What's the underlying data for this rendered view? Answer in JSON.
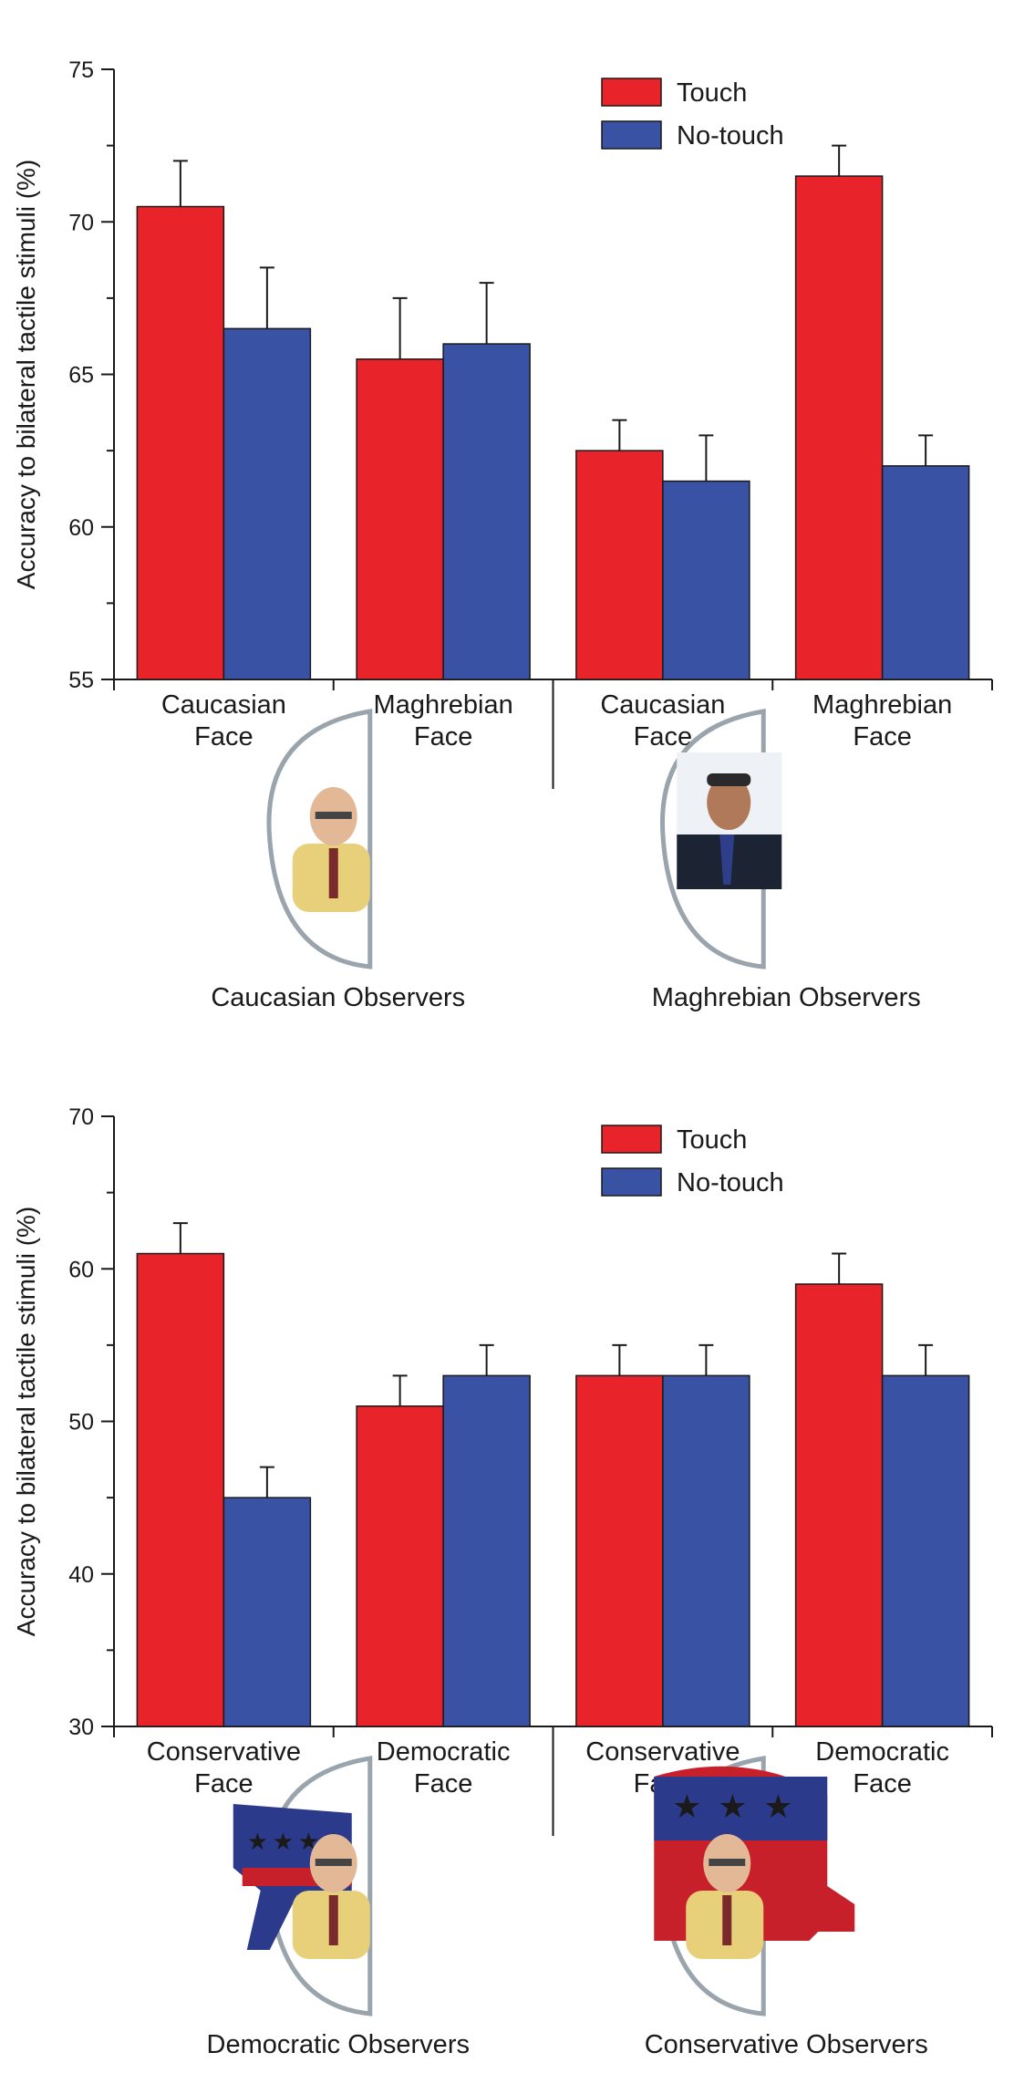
{
  "colors": {
    "touch": "#e8232a",
    "no_touch": "#3a52a4",
    "axis": "#1a1a1a"
  },
  "chart_data": [
    {
      "type": "bar",
      "ylabel": "Accuracy to bilateral tactile stimuli (%)",
      "ylim": [
        55,
        75
      ],
      "yticks": [
        55,
        60,
        65,
        70,
        75
      ],
      "legend": {
        "position": "top-right",
        "entries": [
          "Touch",
          "No-touch"
        ]
      },
      "categories": [
        [
          "Caucasian",
          "Face"
        ],
        [
          "Maghrebian",
          "Face"
        ],
        [
          "Caucasian",
          "Face"
        ],
        [
          "Maghrebian",
          "Face"
        ]
      ],
      "groups": [
        "Caucasian Observers",
        "Maghrebian Observers"
      ],
      "series": [
        {
          "name": "Touch",
          "values": [
            70.5,
            65.5,
            62.5,
            71.5
          ],
          "errors": [
            1.5,
            2.0,
            1.0,
            1.0
          ]
        },
        {
          "name": "No-touch",
          "values": [
            66.5,
            66.0,
            61.5,
            62.0
          ],
          "errors": [
            2.0,
            2.0,
            1.5,
            1.0
          ]
        }
      ],
      "icons": [
        "caucasian-man-photo-icon",
        "maghrebian-man-photo-icon"
      ]
    },
    {
      "type": "bar",
      "ylabel": "Accuracy to bilateral tactile stimuli (%)",
      "ylim": [
        30,
        70
      ],
      "yticks": [
        30,
        40,
        50,
        60,
        70
      ],
      "legend": {
        "position": "top-right",
        "entries": [
          "Touch",
          "No-touch"
        ]
      },
      "categories": [
        [
          "Conservative",
          "Face"
        ],
        [
          "Democratic",
          "Face"
        ],
        [
          "Conservative",
          "Face"
        ],
        [
          "Democratic",
          "Face"
        ]
      ],
      "groups": [
        "Democratic Observers",
        "Conservative Observers"
      ],
      "series": [
        {
          "name": "Touch",
          "values": [
            61,
            51,
            53,
            59
          ],
          "errors": [
            2,
            2,
            2,
            2
          ]
        },
        {
          "name": "No-touch",
          "values": [
            45,
            53,
            53,
            53
          ],
          "errors": [
            2,
            2,
            2,
            2
          ]
        }
      ],
      "icons": [
        "democratic-donkey-photo-icon",
        "republican-elephant-photo-icon"
      ]
    }
  ]
}
